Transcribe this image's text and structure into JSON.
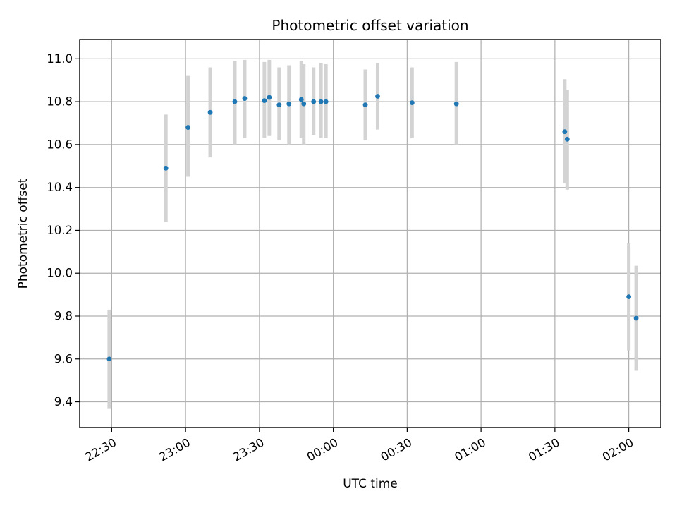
{
  "chart_data": {
    "type": "scatter",
    "title": "Photometric offset variation",
    "xlabel": "UTC time",
    "ylabel": "Photometric offset",
    "x_ticks": [
      "22:30",
      "23:00",
      "23:30",
      "00:00",
      "00:30",
      "01:00",
      "01:30",
      "02:00"
    ],
    "x_tick_times": [
      "22:30",
      "23:00",
      "23:30",
      "24:00",
      "24:30",
      "25:00",
      "25:30",
      "26:00"
    ],
    "xlim": [
      "22:17",
      "26:13"
    ],
    "y_ticks": [
      "9.4",
      "9.6",
      "9.8",
      "10.0",
      "10.2",
      "10.4",
      "10.6",
      "10.8",
      "11.0"
    ],
    "ylim": [
      9.28,
      11.09
    ],
    "grid": true,
    "colors": {
      "points": "#1f77b4",
      "error_bars": "#d3d3d3",
      "grid": "#b0b0b0"
    },
    "points": [
      {
        "t": "22:29",
        "y": 9.6,
        "lo": 9.37,
        "hi": 9.83
      },
      {
        "t": "22:52",
        "y": 10.49,
        "lo": 10.24,
        "hi": 10.74
      },
      {
        "t": "23:01",
        "y": 10.68,
        "lo": 10.45,
        "hi": 10.92
      },
      {
        "t": "23:10",
        "y": 10.75,
        "lo": 10.54,
        "hi": 10.96
      },
      {
        "t": "23:20",
        "y": 10.8,
        "lo": 10.6,
        "hi": 10.99
      },
      {
        "t": "23:24",
        "y": 10.815,
        "lo": 10.63,
        "hi": 10.995
      },
      {
        "t": "23:32",
        "y": 10.805,
        "lo": 10.63,
        "hi": 10.985
      },
      {
        "t": "23:34",
        "y": 10.82,
        "lo": 10.64,
        "hi": 10.995
      },
      {
        "t": "23:38",
        "y": 10.785,
        "lo": 10.62,
        "hi": 10.96
      },
      {
        "t": "23:42",
        "y": 10.79,
        "lo": 10.6,
        "hi": 10.97
      },
      {
        "t": "23:47",
        "y": 10.81,
        "lo": 10.63,
        "hi": 10.99
      },
      {
        "t": "23:48",
        "y": 10.79,
        "lo": 10.6,
        "hi": 10.975
      },
      {
        "t": "23:52",
        "y": 10.8,
        "lo": 10.645,
        "hi": 10.96
      },
      {
        "t": "23:55",
        "y": 10.8,
        "lo": 10.63,
        "hi": 10.98
      },
      {
        "t": "23:57",
        "y": 10.8,
        "lo": 10.63,
        "hi": 10.975
      },
      {
        "t": "24:13",
        "y": 10.785,
        "lo": 10.62,
        "hi": 10.95
      },
      {
        "t": "24:18",
        "y": 10.825,
        "lo": 10.67,
        "hi": 10.98
      },
      {
        "t": "24:32",
        "y": 10.795,
        "lo": 10.63,
        "hi": 10.96
      },
      {
        "t": "24:50",
        "y": 10.79,
        "lo": 10.6,
        "hi": 10.985
      },
      {
        "t": "25:34",
        "y": 10.66,
        "lo": 10.42,
        "hi": 10.905
      },
      {
        "t": "25:35",
        "y": 10.625,
        "lo": 10.39,
        "hi": 10.855
      },
      {
        "t": "26:00",
        "y": 9.89,
        "lo": 9.64,
        "hi": 10.14
      },
      {
        "t": "26:03",
        "y": 9.79,
        "lo": 9.545,
        "hi": 10.035
      }
    ]
  }
}
